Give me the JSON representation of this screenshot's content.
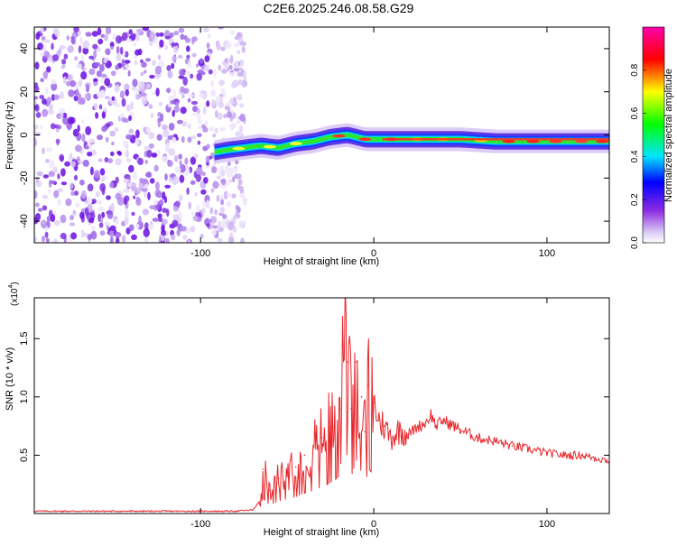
{
  "title": "C2E6.2025.246.08.58.G29",
  "chart_data": [
    {
      "type": "heatmap",
      "xlabel": "Height of straight line (km)",
      "ylabel": "Frequency (Hz)",
      "xlim": [
        -196,
        136
      ],
      "ylim": [
        -50,
        50
      ],
      "xticks": [
        -100,
        0,
        100
      ],
      "yticks": [
        -40,
        -20,
        0,
        20,
        40
      ],
      "colorbar": {
        "label": "Normalized spectral amplitude",
        "range": [
          0,
          1
        ],
        "ticks": [
          "0.0",
          "0.2",
          "0.4",
          "0.6",
          "0.8"
        ],
        "colormap": "rainbow (white-violet-blue-cyan-green-yellow-red-magenta)"
      },
      "ridge": {
        "x": [
          -92,
          -85,
          -75,
          -65,
          -55,
          -45,
          -35,
          -25,
          -15,
          -5,
          5,
          15,
          30,
          50,
          70,
          90,
          110,
          136
        ],
        "frequency": [
          -8,
          -7,
          -6,
          -5,
          -6,
          -4,
          -3,
          -1,
          0,
          -2,
          -2,
          -2,
          -2,
          -2,
          -3,
          -3,
          -3,
          -3
        ]
      },
      "noise_region_x": [
        -196,
        -80
      ]
    },
    {
      "type": "line",
      "xlabel": "Height of straight line (km)",
      "ylabel": "SNR (10 * v/v)",
      "y_multiplier": "(x10",
      "y_multiplier_exp": "4",
      "xlim": [
        -196,
        136
      ],
      "ylim": [
        0,
        1.85
      ],
      "xticks": [
        -100,
        0,
        100
      ],
      "yticks": [
        "0.5",
        "1.0",
        "1.5"
      ],
      "ytick_values": [
        0.5,
        1.0,
        1.5
      ],
      "series": [
        {
          "color": "#e8262b",
          "x": [
            -196,
            -180,
            -160,
            -140,
            -120,
            -100,
            -80,
            -70,
            -66,
            -64,
            -60,
            -55,
            -50,
            -45,
            -40,
            -35,
            -30,
            -25,
            -20,
            -17,
            -15,
            -13,
            -10,
            -7,
            -5,
            -3,
            0,
            3,
            6,
            10,
            15,
            20,
            25,
            30,
            33,
            36,
            40,
            50,
            60,
            70,
            80,
            90,
            100,
            110,
            120,
            130,
            136
          ],
          "y": [
            0.02,
            0.02,
            0.02,
            0.02,
            0.02,
            0.02,
            0.02,
            0.03,
            0.1,
            0.38,
            0.2,
            0.3,
            0.35,
            0.4,
            0.5,
            0.55,
            0.65,
            0.75,
            0.9,
            1.85,
            1.3,
            0.9,
            1.3,
            1.0,
            0.7,
            1.1,
            0.95,
            0.8,
            0.75,
            0.65,
            0.72,
            0.68,
            0.74,
            0.78,
            0.85,
            0.75,
            0.8,
            0.72,
            0.65,
            0.62,
            0.58,
            0.55,
            0.52,
            0.5,
            0.5,
            0.47,
            0.45
          ]
        }
      ]
    }
  ]
}
